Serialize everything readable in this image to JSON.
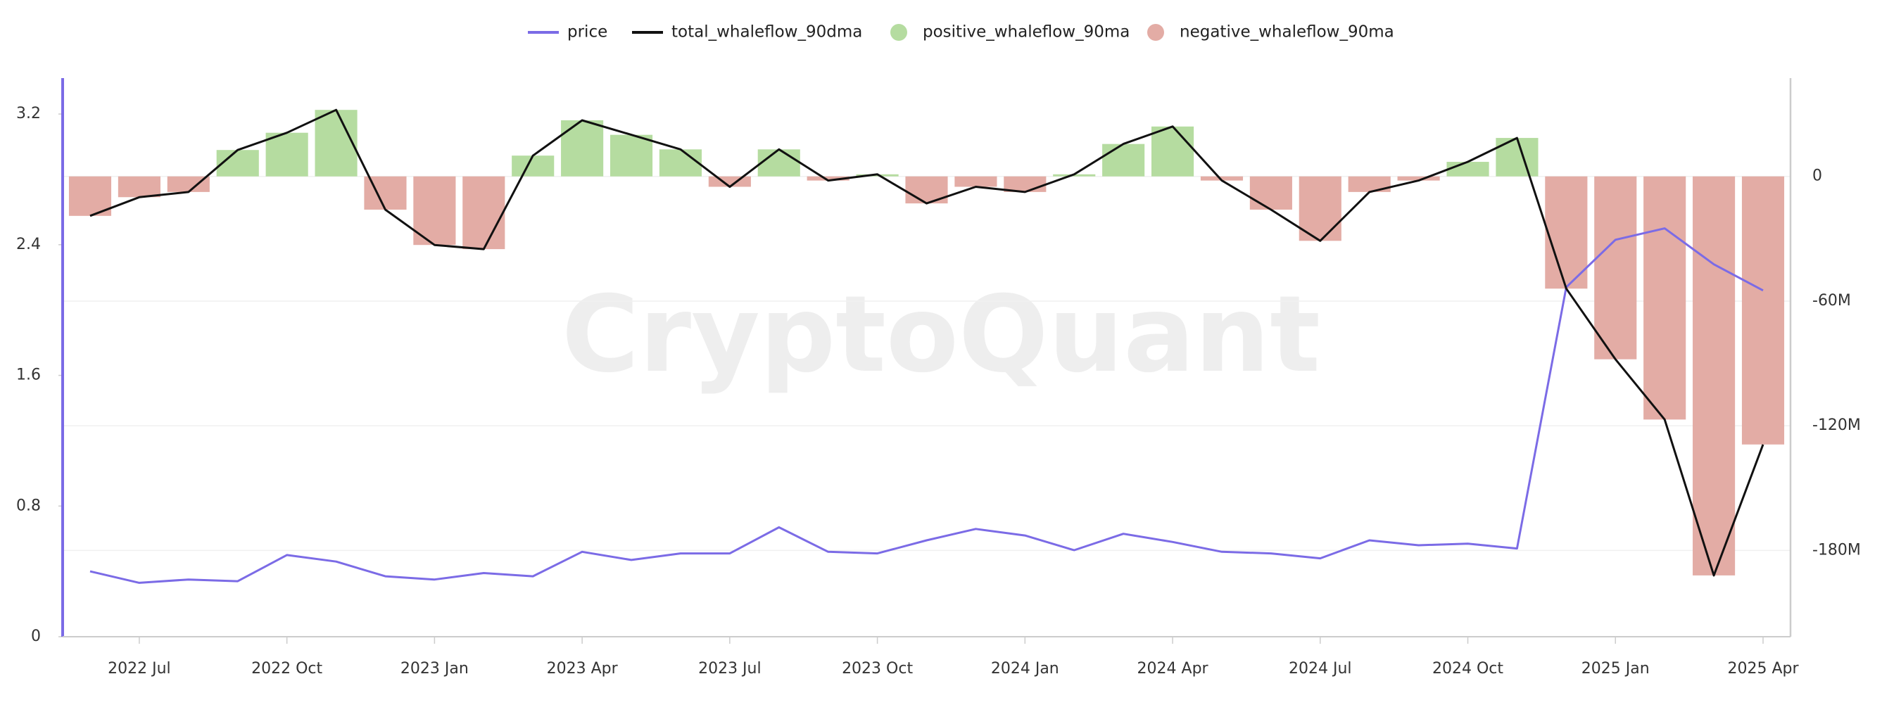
{
  "chart_data": {
    "type": "combo",
    "watermark": "CryptoQuant",
    "x": [
      "2022-06",
      "2022-07",
      "2022-08",
      "2022-09",
      "2022-10",
      "2022-11",
      "2022-12",
      "2023-01",
      "2023-02",
      "2023-03",
      "2023-04",
      "2023-05",
      "2023-06",
      "2023-07",
      "2023-08",
      "2023-09",
      "2023-10",
      "2023-11",
      "2023-12",
      "2024-01",
      "2024-02",
      "2024-03",
      "2024-04",
      "2024-05",
      "2024-06",
      "2024-07",
      "2024-08",
      "2024-09",
      "2024-10",
      "2024-11",
      "2024-12",
      "2025-01",
      "2025-02",
      "2025-03",
      "2025-04"
    ],
    "series": [
      {
        "name": "price",
        "type": "line",
        "axis": "y",
        "color": "#7b6be6",
        "values": [
          0.4,
          0.33,
          0.35,
          0.34,
          0.5,
          0.46,
          0.37,
          0.35,
          0.39,
          0.37,
          0.52,
          0.47,
          0.51,
          0.51,
          0.67,
          0.52,
          0.51,
          0.59,
          0.66,
          0.62,
          0.53,
          0.63,
          0.58,
          0.52,
          0.51,
          0.48,
          0.59,
          0.56,
          0.57,
          0.54,
          2.14,
          2.43,
          2.5,
          2.28,
          2.12
        ]
      },
      {
        "name": "total_whaleflow_90dma",
        "type": "line",
        "axis": "y2",
        "color": "#111111",
        "values": [
          -19000000,
          -10000000,
          -7500000,
          12700000,
          21000000,
          32000000,
          -16000000,
          -33000000,
          -35000000,
          10000000,
          27000000,
          20000000,
          13000000,
          -5000000,
          13000000,
          -2000000,
          1000000,
          -13000000,
          -5000000,
          -7500000,
          1000000,
          15600000,
          24000000,
          -2000000,
          -16000000,
          -31000000,
          -7500000,
          -2000000,
          7000000,
          18500000,
          -54000000,
          -88000000,
          -117000000,
          -192000000,
          -129000000
        ]
      },
      {
        "name": "positive_whaleflow_90ma",
        "type": "bar",
        "axis": "y2",
        "color": "#b5dca0",
        "values": [
          null,
          null,
          null,
          12700000,
          21000000,
          32000000,
          null,
          null,
          null,
          10000000,
          27000000,
          20000000,
          13000000,
          null,
          13000000,
          null,
          1000000,
          null,
          null,
          null,
          1000000,
          15600000,
          24000000,
          null,
          null,
          null,
          null,
          null,
          7000000,
          18500000,
          null,
          null,
          null,
          null,
          null
        ]
      },
      {
        "name": "negative_whaleflow_90ma",
        "type": "bar",
        "axis": "y2",
        "color": "#e3aca5",
        "values": [
          -19000000,
          -10000000,
          -7500000,
          null,
          null,
          null,
          -16000000,
          -33000000,
          -35000000,
          null,
          null,
          null,
          null,
          -5000000,
          null,
          -2000000,
          null,
          -13000000,
          -5000000,
          -7500000,
          null,
          null,
          null,
          -2000000,
          -16000000,
          -31000000,
          -7500000,
          -2000000,
          null,
          null,
          -54000000,
          -88000000,
          -117000000,
          -192000000,
          -129000000
        ]
      }
    ],
    "ylim": [
      0,
      3.42
    ],
    "yticks": [
      0,
      0.8,
      1.6,
      2.4,
      3.2
    ],
    "y2lim": [
      -221500000,
      47300000
    ],
    "y2ticks": [
      {
        "value": 0,
        "label": "0"
      },
      {
        "value": -60000000,
        "label": "-60M"
      },
      {
        "value": -120000000,
        "label": "-120M"
      },
      {
        "value": -180000000,
        "label": "-180M"
      }
    ],
    "xticks": [
      {
        "value": "2022-07",
        "label": "2022 Jul"
      },
      {
        "value": "2022-10",
        "label": "2022 Oct"
      },
      {
        "value": "2023-01",
        "label": "2023 Jan"
      },
      {
        "value": "2023-04",
        "label": "2023 Apr"
      },
      {
        "value": "2023-07",
        "label": "2023 Jul"
      },
      {
        "value": "2023-10",
        "label": "2023 Oct"
      },
      {
        "value": "2024-01",
        "label": "2024 Jan"
      },
      {
        "value": "2024-04",
        "label": "2024 Apr"
      },
      {
        "value": "2024-07",
        "label": "2024 Jul"
      },
      {
        "value": "2024-10",
        "label": "2024 Oct"
      },
      {
        "value": "2025-01",
        "label": "2025 Jan"
      },
      {
        "value": "2025-04",
        "label": "2025 Apr"
      }
    ],
    "grid": true
  }
}
